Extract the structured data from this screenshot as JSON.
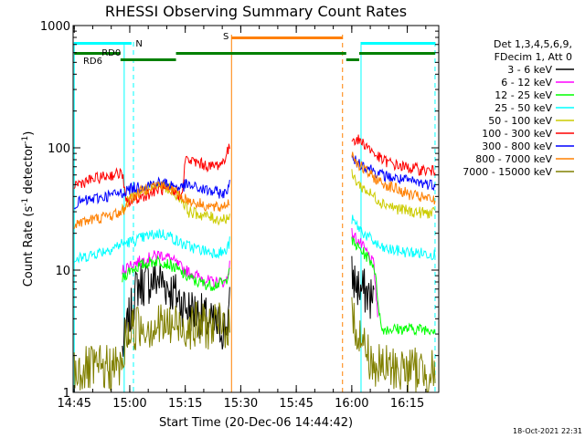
{
  "chart_data": {
    "type": "line",
    "title": "RHESSI Observing Summary Count Rates",
    "xlabel": "Start Time (20-Dec-06 14:44:42)",
    "ylabel_main": "Count Rate (s",
    "ylabel_sup1": "-1",
    "ylabel_mid": " detector",
    "ylabel_sup2": "-1",
    "ylabel_end": ")",
    "yscale": "log",
    "ylim": [
      1,
      1000
    ],
    "xlim": [
      "14:44:42",
      "16:23:30"
    ],
    "x_tick_labels": [
      "14:45",
      "15:00",
      "15:15",
      "15:30",
      "15:45",
      "16:00",
      "16:15"
    ],
    "y_tick_labels": [
      "1",
      "10",
      "100",
      "1000"
    ],
    "y_ticks": [
      1,
      10,
      100,
      1000
    ],
    "legend_header": [
      "Det 1,3,4,5,6,9,",
      "FDecim 1, Att 0"
    ],
    "timestamp": "18-Oct-2021 22:31",
    "legend_position": "right, outside plot",
    "grid": false,
    "series": [
      {
        "name": "3 - 6 keV",
        "color": "#000000",
        "gap": "noise",
        "points": [
          [
            "14:58:00",
            2.2
          ],
          [
            "15:02:00",
            7.5
          ],
          [
            "15:05:00",
            8
          ],
          [
            "15:08:00",
            8.5
          ],
          [
            "15:11:00",
            7
          ],
          [
            "15:13:00",
            6
          ],
          [
            "15:15:00",
            5
          ],
          [
            "15:18:00",
            4.5
          ],
          [
            "15:22:00",
            3.6
          ],
          [
            "15:26:00",
            3.3
          ],
          [
            "15:27:00",
            5
          ]
        ],
        "points2": [
          [
            "16:00:00",
            9
          ],
          [
            "16:02:00",
            7
          ],
          [
            "16:04:00",
            6.5
          ],
          [
            "16:06:00",
            5.5
          ]
        ]
      },
      {
        "name": "6 - 12 keV",
        "color": "#ff00ff",
        "points": [
          [
            "14:58:00",
            10
          ],
          [
            "15:00:00",
            11
          ],
          [
            "15:05:00",
            12.5
          ],
          [
            "15:08:00",
            13.5
          ],
          [
            "15:11:00",
            12.5
          ],
          [
            "15:13:00",
            11
          ],
          [
            "15:15:00",
            10
          ],
          [
            "15:18:00",
            9
          ],
          [
            "15:22:00",
            8
          ],
          [
            "15:26:00",
            8
          ],
          [
            "15:27:00",
            11
          ]
        ],
        "points2": [
          [
            "16:00:00",
            20
          ],
          [
            "16:02:00",
            17
          ],
          [
            "16:04:00",
            14
          ],
          [
            "16:06:00",
            11
          ],
          [
            "16:07:00",
            4
          ]
        ]
      },
      {
        "name": "12 - 25 keV",
        "color": "#00ff00",
        "points": [
          [
            "14:58:00",
            8.5
          ],
          [
            "15:00:00",
            10
          ],
          [
            "15:05:00",
            11.5
          ],
          [
            "15:08:00",
            12
          ],
          [
            "15:11:00",
            11
          ],
          [
            "15:13:00",
            10
          ],
          [
            "15:15:00",
            9
          ],
          [
            "15:18:00",
            8
          ],
          [
            "15:22:00",
            7.5
          ],
          [
            "15:26:00",
            8
          ],
          [
            "15:27:00",
            11
          ]
        ],
        "points2": [
          [
            "16:00:00",
            17
          ],
          [
            "16:02:00",
            15
          ],
          [
            "16:04:00",
            13
          ],
          [
            "16:06:00",
            11
          ],
          [
            "16:08:00",
            3.3
          ],
          [
            "16:22:30",
            3.3
          ]
        ]
      },
      {
        "name": "25 - 50 keV",
        "color": "#00ffff",
        "points": [
          [
            "14:45:00",
            12
          ],
          [
            "14:50:00",
            13.5
          ],
          [
            "14:55:00",
            15
          ],
          [
            "14:58:00",
            16.5
          ],
          [
            "15:00:00",
            17
          ],
          [
            "15:05:00",
            19
          ],
          [
            "15:08:00",
            20
          ],
          [
            "15:11:00",
            19
          ],
          [
            "15:13:00",
            17
          ],
          [
            "15:15:00",
            16
          ],
          [
            "15:18:00",
            15
          ],
          [
            "15:22:00",
            14
          ],
          [
            "15:26:00",
            14
          ],
          [
            "15:27:00",
            17
          ]
        ],
        "points2": [
          [
            "16:00:00",
            26
          ],
          [
            "16:02:00",
            22
          ],
          [
            "16:04:00",
            19
          ],
          [
            "16:06:00",
            17
          ],
          [
            "16:08:00",
            15
          ],
          [
            "16:15:00",
            14
          ],
          [
            "16:22:30",
            13.5
          ]
        ]
      },
      {
        "name": "50 - 100 keV",
        "color": "#cccc00",
        "points": [
          [
            "14:58:00",
            32
          ],
          [
            "15:00:00",
            38
          ],
          [
            "15:05:00",
            46
          ],
          [
            "15:08:00",
            50
          ],
          [
            "15:11:00",
            46
          ],
          [
            "15:14:00",
            38
          ],
          [
            "15:16:00",
            30
          ],
          [
            "15:20:00",
            28
          ],
          [
            "15:24:00",
            26
          ],
          [
            "15:27:00",
            27
          ]
        ],
        "points2": [
          [
            "16:00:00",
            60
          ],
          [
            "16:02:00",
            50
          ],
          [
            "16:05:00",
            42
          ],
          [
            "16:08:00",
            36
          ],
          [
            "16:12:00",
            32
          ],
          [
            "16:16:00",
            30
          ],
          [
            "16:22:30",
            29
          ]
        ]
      },
      {
        "name": "100 - 300 keV",
        "color": "#ff0000",
        "points": [
          [
            "14:45:00",
            50
          ],
          [
            "14:50:00",
            55
          ],
          [
            "14:55:00",
            60
          ],
          [
            "14:58:00",
            62
          ],
          [
            "14:59:00",
            35
          ],
          [
            "15:00:00",
            36
          ],
          [
            "15:05:00",
            42
          ],
          [
            "15:08:00",
            46
          ],
          [
            "15:11:00",
            44
          ],
          [
            "15:14:00",
            40
          ],
          [
            "15:15:00",
            80
          ],
          [
            "15:18:00",
            76
          ],
          [
            "15:22:00",
            70
          ],
          [
            "15:25:00",
            75
          ],
          [
            "15:27:00",
            100
          ]
        ],
        "points2": [
          [
            "16:00:00",
            120
          ],
          [
            "16:02:00",
            115
          ],
          [
            "16:04:00",
            105
          ],
          [
            "16:06:00",
            90
          ],
          [
            "16:08:00",
            80
          ],
          [
            "16:12:00",
            72
          ],
          [
            "16:16:00",
            68
          ],
          [
            "16:22:30",
            64
          ]
        ]
      },
      {
        "name": "300 - 800 keV",
        "color": "#0000ff",
        "points": [
          [
            "14:45:00",
            35
          ],
          [
            "14:50:00",
            38
          ],
          [
            "14:55:00",
            41
          ],
          [
            "14:58:00",
            43
          ],
          [
            "15:00:00",
            46
          ],
          [
            "15:05:00",
            50
          ],
          [
            "15:08:00",
            52
          ],
          [
            "15:11:00",
            50
          ],
          [
            "15:14:00",
            47
          ],
          [
            "15:15:00",
            50
          ],
          [
            "15:18:00",
            47
          ],
          [
            "15:22:00",
            44
          ],
          [
            "15:26:00",
            42
          ],
          [
            "15:27:00",
            55
          ]
        ],
        "points2": [
          [
            "16:00:00",
            80
          ],
          [
            "16:02:00",
            75
          ],
          [
            "16:04:00",
            70
          ],
          [
            "16:06:00",
            65
          ],
          [
            "16:08:00",
            60
          ],
          [
            "16:12:00",
            56
          ],
          [
            "16:16:00",
            53
          ],
          [
            "16:22:30",
            50
          ]
        ]
      },
      {
        "name": "800 - 7000 keV",
        "color": "#ff8000",
        "points": [
          [
            "14:45:00",
            24
          ],
          [
            "14:50:00",
            26
          ],
          [
            "14:55:00",
            28
          ],
          [
            "14:58:00",
            30
          ],
          [
            "15:00:00",
            38
          ],
          [
            "15:05:00",
            48
          ],
          [
            "15:08:00",
            50
          ],
          [
            "15:11:00",
            46
          ],
          [
            "15:14:00",
            40
          ],
          [
            "15:16:00",
            37
          ],
          [
            "15:20:00",
            34
          ],
          [
            "15:24:00",
            32
          ],
          [
            "15:27:00",
            36
          ]
        ],
        "points2": [
          [
            "16:00:00",
            90
          ],
          [
            "16:02:00",
            72
          ],
          [
            "16:05:00",
            60
          ],
          [
            "16:08:00",
            52
          ],
          [
            "16:12:00",
            46
          ],
          [
            "16:16:00",
            41
          ],
          [
            "16:22:30",
            37
          ]
        ]
      },
      {
        "name": "7000 - 15000 keV",
        "color": "#808000",
        "gap": "noise",
        "points": [
          [
            "14:45:00",
            1.5
          ],
          [
            "14:58:00",
            1.6
          ],
          [
            "14:59:00",
            3
          ],
          [
            "15:02:00",
            3.5
          ],
          [
            "15:27:00",
            3.5
          ]
        ],
        "points2": [
          [
            "16:00:00",
            4
          ],
          [
            "16:02:00",
            3
          ],
          [
            "16:06:00",
            1.6
          ],
          [
            "16:22:30",
            1.5
          ]
        ]
      }
    ],
    "markers": [
      {
        "label": "N",
        "color": "#00ffff"
      },
      {
        "label": "S",
        "color": "#ff8000"
      },
      {
        "label": "RD0",
        "color": "#008000"
      },
      {
        "label": "RD6",
        "color": "#008000"
      }
    ]
  }
}
